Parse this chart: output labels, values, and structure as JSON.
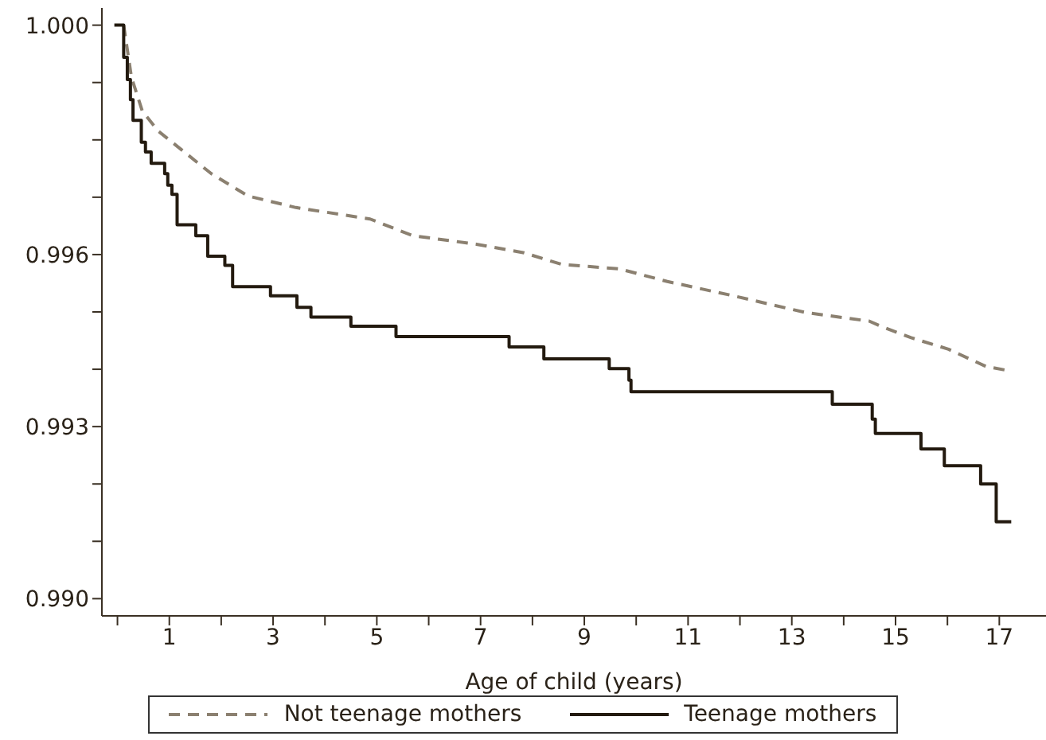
{
  "chart_data": {
    "type": "line",
    "xlabel": "Age of child (years)",
    "xlim": [
      -0.3,
      17.9
    ],
    "xticks": [
      {
        "value": 0,
        "label": null
      },
      1,
      {
        "value": 2,
        "label": null
      },
      3,
      {
        "value": 4,
        "label": null
      },
      5,
      {
        "value": 6,
        "label": null
      },
      7,
      {
        "value": 8,
        "label": null
      },
      9,
      {
        "value": 10,
        "label": null
      },
      11,
      {
        "value": 12,
        "label": null
      },
      13,
      {
        "value": 14,
        "label": null
      },
      15,
      {
        "value": 16,
        "label": null
      },
      17
    ],
    "ylim": [
      0.9897,
      1.0003
    ],
    "yticks": [
      {
        "value": 0.99,
        "label": "0.990"
      },
      {
        "value": 0.991,
        "label": null
      },
      {
        "value": 0.992,
        "label": null
      },
      0.993,
      {
        "value": 0.994,
        "label": null
      },
      {
        "value": 0.995,
        "label": null
      },
      0.996,
      {
        "value": 0.997,
        "label": null
      },
      {
        "value": 0.998,
        "label": null
      },
      {
        "value": 0.999,
        "label": null
      },
      {
        "value": 1,
        "label": "1.000"
      }
    ],
    "legend": "bottom",
    "marker": "none",
    "series": [
      {
        "name": "Not teenage mothers",
        "type": "line",
        "line_style": "dashed",
        "color": "#8b8070",
        "x": [
          0.12,
          0.27,
          0.48,
          0.79,
          1.19,
          1.81,
          2.52,
          3.44,
          4.87,
          5.69,
          6.92,
          7.84,
          8.56,
          9.68,
          10.6,
          11.83,
          13.26,
          14.49,
          14.69,
          15.3,
          16.02,
          16.74,
          17.15
        ],
        "values": [
          1.0,
          0.99909,
          0.9985,
          0.99815,
          0.99786,
          0.99741,
          0.99702,
          0.99682,
          0.99662,
          0.99633,
          0.99618,
          0.99603,
          0.99583,
          0.99575,
          0.99553,
          0.99529,
          0.99499,
          0.99484,
          0.99476,
          0.99455,
          0.99435,
          0.99405,
          0.99398
        ]
      },
      {
        "name": "Teenage mothers",
        "type": "step",
        "line_style": "solid",
        "color": "#231a0f",
        "x": [
          -0.06,
          0.12,
          0.19,
          0.25,
          0.3,
          0.46,
          0.54,
          0.65,
          0.91,
          0.97,
          1.05,
          1.15,
          1.51,
          1.74,
          2.07,
          2.22,
          2.95,
          3.46,
          3.73,
          4.5,
          5.37,
          7.55,
          8.22,
          9.48,
          9.86,
          9.9,
          13.78,
          14.55,
          14.61,
          15.49,
          15.94,
          16.64,
          16.94,
          17.23
        ],
        "values": [
          1.0,
          0.99944,
          0.99905,
          0.9987,
          0.99834,
          0.99796,
          0.99779,
          0.99759,
          0.99741,
          0.99721,
          0.99705,
          0.99652,
          0.99633,
          0.99597,
          0.99581,
          0.99544,
          0.99528,
          0.99508,
          0.99491,
          0.99475,
          0.99457,
          0.99439,
          0.99418,
          0.99401,
          0.99381,
          0.99361,
          0.99339,
          0.99313,
          0.99288,
          0.99261,
          0.99232,
          0.992,
          0.99134,
          0.99134
        ]
      }
    ]
  }
}
